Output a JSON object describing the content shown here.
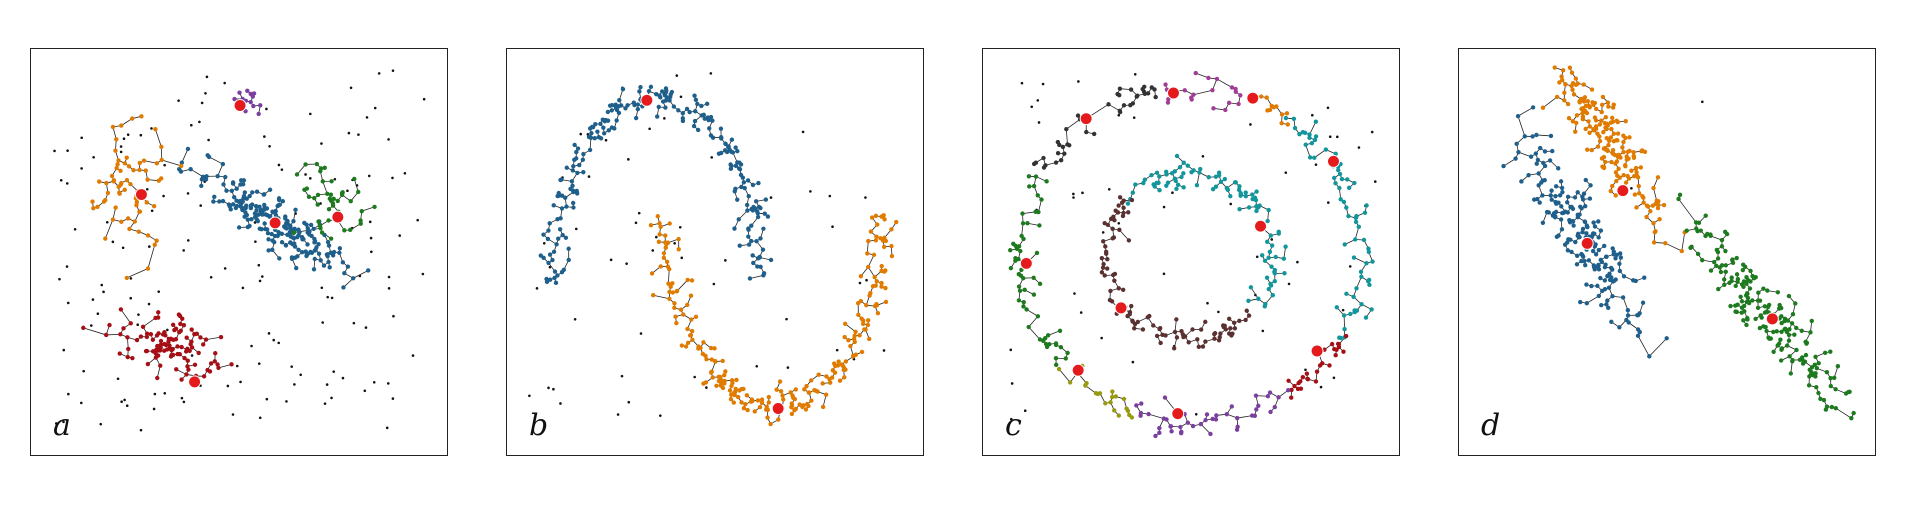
{
  "panel_labels": [
    "a",
    "b",
    "c",
    "d"
  ],
  "colors": {
    "blue": "#1f5f8b",
    "orange": "#e07b00",
    "green": "#1e7a1e",
    "red": "#a50f15",
    "purple": "#7b3fa0",
    "teal": "#11969c",
    "brown": "#5a3030",
    "olive": "#9a9a10",
    "magenta": "#a13d97",
    "dark": "#333333",
    "center": "#e41a1c",
    "noise": "#111111",
    "edge": "#222222"
  },
  "chart_data": [
    {
      "type": "scatter",
      "label": "a",
      "xlim": [
        0,
        1
      ],
      "ylim": [
        0,
        1
      ],
      "noise_points": 150,
      "clusters": [
        {
          "color": "blue",
          "shape": "ellipse",
          "center": [
            0.59,
            0.58
          ],
          "spread": [
            0.2,
            0.035
          ],
          "angle_deg": -35,
          "n": 220,
          "density_center": true
        },
        {
          "color": "orange",
          "shape": "ellipse",
          "center": [
            0.22,
            0.67
          ],
          "spread": [
            0.07,
            0.1
          ],
          "angle_deg": 0,
          "n": 70,
          "density_center": false,
          "peak": [
            0.25,
            0.65
          ]
        },
        {
          "color": "green",
          "shape": "ellipse",
          "center": [
            0.74,
            0.63
          ],
          "spread": [
            0.07,
            0.06
          ],
          "angle_deg": 0,
          "n": 45,
          "density_center": false,
          "peak": [
            0.74,
            0.59
          ]
        },
        {
          "color": "red",
          "shape": "ellipse",
          "center": [
            0.33,
            0.26
          ],
          "spread": [
            0.11,
            0.05
          ],
          "angle_deg": -30,
          "n": 110,
          "density_center": false,
          "peak": [
            0.4,
            0.15
          ]
        },
        {
          "color": "purple",
          "shape": "ellipse",
          "center": [
            0.52,
            0.89
          ],
          "spread": [
            0.04,
            0.025
          ],
          "angle_deg": 0,
          "n": 14,
          "density_center": false,
          "peak": [
            0.51,
            0.88
          ]
        }
      ]
    },
    {
      "type": "scatter",
      "label": "b",
      "xlim": [
        0,
        1
      ],
      "ylim": [
        0,
        1
      ],
      "noise_points": 55,
      "clusters": [
        {
          "color": "blue",
          "shape": "arc",
          "arc_center": [
            0.35,
            0.42
          ],
          "radius": [
            0.26,
            0.48
          ],
          "arc_from_deg": 0,
          "arc_to_deg": 180,
          "thickness": 0.022,
          "n": 240,
          "peak": [
            0.33,
            0.89
          ]
        },
        {
          "color": "orange",
          "shape": "arc",
          "arc_center": [
            0.65,
            0.6
          ],
          "radius": [
            0.27,
            0.5
          ],
          "arc_from_deg": 180,
          "arc_to_deg": 360,
          "thickness": 0.022,
          "n": 240,
          "peak": [
            0.65,
            0.09
          ]
        }
      ]
    },
    {
      "type": "scatter",
      "label": "c",
      "xlim": [
        0,
        1
      ],
      "ylim": [
        0,
        1
      ],
      "noise_points": 60,
      "clusters": [
        {
          "color": "dark",
          "shape": "arc",
          "arc_center": [
            0.5,
            0.49
          ],
          "radius": [
            0.43,
            0.43
          ],
          "arc_from_deg": 100,
          "arc_to_deg": 150,
          "thickness": 0.02,
          "n": 40,
          "peak": [
            0.27,
            0.85
          ]
        },
        {
          "color": "magenta",
          "shape": "arc",
          "arc_center": [
            0.5,
            0.49
          ],
          "radius": [
            0.43,
            0.43
          ],
          "arc_from_deg": 70,
          "arc_to_deg": 100,
          "thickness": 0.02,
          "n": 22,
          "peak": [
            0.47,
            0.91
          ]
        },
        {
          "color": "orange",
          "shape": "arc",
          "arc_center": [
            0.5,
            0.49
          ],
          "radius": [
            0.43,
            0.43
          ],
          "arc_from_deg": 55,
          "arc_to_deg": 70,
          "thickness": 0.02,
          "n": 14,
          "peak": [
            0.67,
            0.88
          ]
        },
        {
          "color": "teal",
          "shape": "arc",
          "arc_center": [
            0.5,
            0.49
          ],
          "radius": [
            0.43,
            0.43
          ],
          "arc_from_deg": -30,
          "arc_to_deg": 55,
          "thickness": 0.02,
          "n": 70,
          "peak": [
            0.84,
            0.74
          ]
        },
        {
          "color": "red",
          "shape": "arc",
          "arc_center": [
            0.5,
            0.49
          ],
          "radius": [
            0.43,
            0.43
          ],
          "arc_from_deg": -55,
          "arc_to_deg": -30,
          "thickness": 0.02,
          "n": 30,
          "peak": [
            0.82,
            0.24
          ]
        },
        {
          "color": "purple",
          "shape": "arc",
          "arc_center": [
            0.5,
            0.49
          ],
          "radius": [
            0.43,
            0.43
          ],
          "arc_from_deg": -110,
          "arc_to_deg": -55,
          "thickness": 0.02,
          "n": 45,
          "peak": [
            0.46,
            0.08
          ]
        },
        {
          "color": "olive",
          "shape": "arc",
          "arc_center": [
            0.5,
            0.49
          ],
          "radius": [
            0.43,
            0.43
          ],
          "arc_from_deg": -140,
          "arc_to_deg": -110,
          "thickness": 0.02,
          "n": 22,
          "peak": [
            0.23,
            0.19
          ]
        },
        {
          "color": "green",
          "shape": "arc",
          "arc_center": [
            0.5,
            0.49
          ],
          "radius": [
            0.43,
            0.43
          ],
          "arc_from_deg": -210,
          "arc_to_deg": -140,
          "thickness": 0.02,
          "n": 60,
          "peak": [
            0.09,
            0.49
          ]
        },
        {
          "color": "teal",
          "shape": "arc",
          "arc_center": [
            0.5,
            0.49
          ],
          "radius": [
            0.21,
            0.21
          ],
          "arc_from_deg": -40,
          "arc_to_deg": 140,
          "thickness": 0.018,
          "n": 100,
          "peak": [
            0.69,
            0.56
          ]
        },
        {
          "color": "brown",
          "shape": "arc",
          "arc_center": [
            0.5,
            0.49
          ],
          "radius": [
            0.21,
            0.21
          ],
          "arc_from_deg": 140,
          "arc_to_deg": 320,
          "thickness": 0.018,
          "n": 100,
          "peak": [
            0.33,
            0.37
          ]
        }
      ]
    },
    {
      "type": "scatter",
      "label": "d",
      "xlim": [
        0,
        1
      ],
      "ylim": [
        0,
        1
      ],
      "noise_points": 2,
      "clusters": [
        {
          "color": "blue",
          "shape": "ellipse",
          "center": [
            0.29,
            0.54
          ],
          "spread": [
            0.24,
            0.04
          ],
          "angle_deg": -60,
          "n": 200,
          "density_center": false,
          "peak": [
            0.3,
            0.52
          ]
        },
        {
          "color": "orange",
          "shape": "ellipse",
          "center": [
            0.36,
            0.77
          ],
          "spread": [
            0.24,
            0.035
          ],
          "angle_deg": -58,
          "n": 200,
          "density_center": false,
          "peak": [
            0.38,
            0.67
          ]
        },
        {
          "color": "green",
          "shape": "ellipse",
          "center": [
            0.76,
            0.33
          ],
          "spread": [
            0.24,
            0.035
          ],
          "angle_deg": -52,
          "n": 200,
          "density_center": false,
          "peak": [
            0.76,
            0.33
          ]
        }
      ]
    }
  ]
}
